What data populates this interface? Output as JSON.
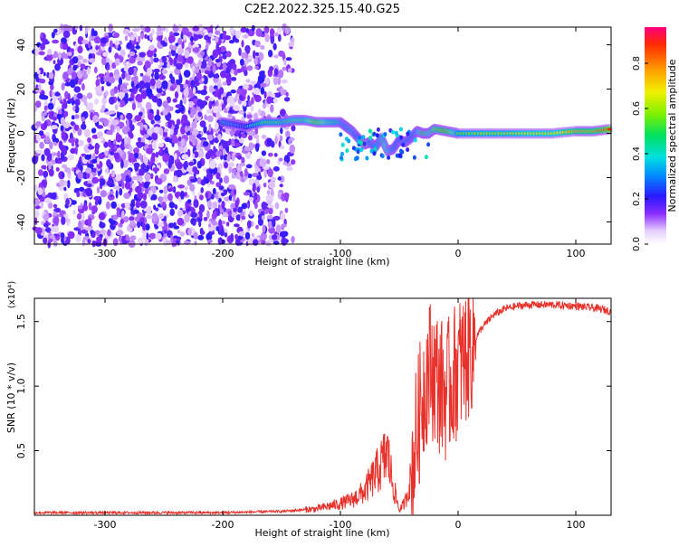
{
  "title": "C2E2.2022.325.15.40.G25",
  "chart_data": [
    {
      "type": "heatmap",
      "xlabel": "Height of straight line (km)",
      "ylabel": "Frequency (Hz)",
      "xlim": [
        -360,
        130
      ],
      "ylim": [
        -50,
        48
      ],
      "xticks": [
        -300,
        -200,
        -100,
        0,
        100
      ],
      "yticks": [
        -40,
        -20,
        0,
        20,
        40
      ],
      "colorbar": {
        "label": "Normalized spectral amplitude",
        "range": [
          0,
          0.96
        ],
        "ticks": [
          "0.0",
          "0.2",
          "0.4",
          "0.6",
          "0.8"
        ],
        "tick_values": [
          0,
          0.2,
          0.4,
          0.6,
          0.8
        ]
      },
      "noise_region": {
        "x_from": -360,
        "x_to": -140,
        "y_from": -50,
        "y_to": 48,
        "level": 0.12
      },
      "trace": {
        "x": [
          -200,
          -190,
          -180,
          -165,
          -150,
          -140,
          -130,
          -120,
          -110,
          -100,
          -95,
          -90,
          -85,
          -80,
          -75,
          -70,
          -65,
          -60,
          -55,
          -50,
          -45,
          -40,
          -35,
          -30,
          -25,
          -20,
          -10,
          0,
          20,
          40,
          60,
          80,
          100,
          115,
          130
        ],
        "y": [
          5,
          4,
          3,
          5,
          5,
          6,
          6,
          5,
          5,
          5,
          3,
          1,
          -2,
          -5,
          -4,
          -6,
          -2,
          -8,
          -7,
          -3,
          -4,
          -2,
          1,
          0,
          0,
          2,
          1,
          0,
          0,
          0,
          0,
          0,
          1,
          1,
          2
        ],
        "amplitude": [
          0.45,
          0.4,
          0.35,
          0.55,
          0.55,
          0.6,
          0.6,
          0.8,
          0.6,
          0.55,
          0.5,
          0.55,
          0.45,
          0.95,
          0.5,
          0.5,
          0.55,
          0.7,
          0.5,
          0.45,
          0.5,
          0.45,
          0.5,
          0.85,
          0.7,
          0.75,
          0.85,
          0.55,
          0.6,
          0.6,
          0.65,
          0.65,
          0.8,
          0.8,
          0.95
        ]
      }
    },
    {
      "type": "line",
      "xlabel": "Height of straight line (km)",
      "ylabel": "SNR (10 * v/v)",
      "scale_label": "(x10⁴)",
      "xlim": [
        -360,
        130
      ],
      "ylim": [
        0,
        1.68
      ],
      "xticks": [
        -300,
        -200,
        -100,
        0,
        100
      ],
      "yticks": [
        0.5,
        1.0,
        1.5
      ],
      "ytick_labels": [
        "0.5",
        "1.0",
        "1.5"
      ],
      "series": [
        {
          "color": "#e8312b",
          "x": [
            -360,
            -300,
            -200,
            -150,
            -120,
            -100,
            -90,
            -80,
            -70,
            -60,
            -55,
            -50,
            -45,
            -40,
            -35,
            -30,
            -25,
            -20,
            -15,
            -10,
            -5,
            0,
            5,
            10,
            20,
            30,
            40,
            50,
            60,
            80,
            100,
            120,
            130
          ],
          "y": [
            0.02,
            0.02,
            0.02,
            0.03,
            0.05,
            0.09,
            0.12,
            0.18,
            0.32,
            0.48,
            0.22,
            0.04,
            0.1,
            0.3,
            0.65,
            0.95,
            1.15,
            1.1,
            1.0,
            0.95,
            1.05,
            1.15,
            1.2,
            1.3,
            1.45,
            1.55,
            1.6,
            1.62,
            1.63,
            1.63,
            1.62,
            1.6,
            1.58
          ]
        }
      ]
    }
  ]
}
